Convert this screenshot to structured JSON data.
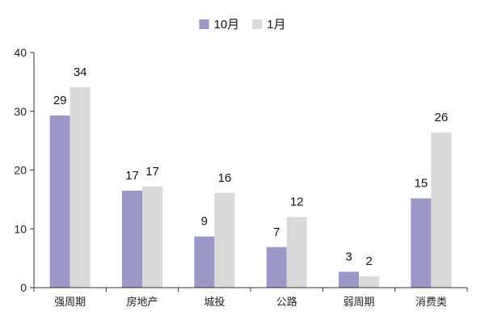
{
  "chart_data": {
    "type": "bar",
    "categories": [
      "强周期",
      "房地产",
      "城投",
      "公路",
      "弱周期",
      "消费类"
    ],
    "series": [
      {
        "name": "10月",
        "color": "#9b97c8",
        "values": [
          29.3,
          16.5,
          8.7,
          6.9,
          2.7,
          15.2
        ],
        "labels": [
          "29",
          "17",
          "9",
          "7",
          "3",
          "15"
        ]
      },
      {
        "name": "1月",
        "color": "#d9d9d9",
        "values": [
          34.1,
          17.2,
          16.1,
          12.0,
          1.9,
          26.4
        ],
        "labels": [
          "34",
          "17",
          "16",
          "12",
          "2",
          "26"
        ]
      }
    ],
    "ylim": [
      0,
      40
    ],
    "yticks": [
      "0",
      "10",
      "20",
      "30",
      "40"
    ],
    "legend_position": "top-center",
    "grid": false
  }
}
